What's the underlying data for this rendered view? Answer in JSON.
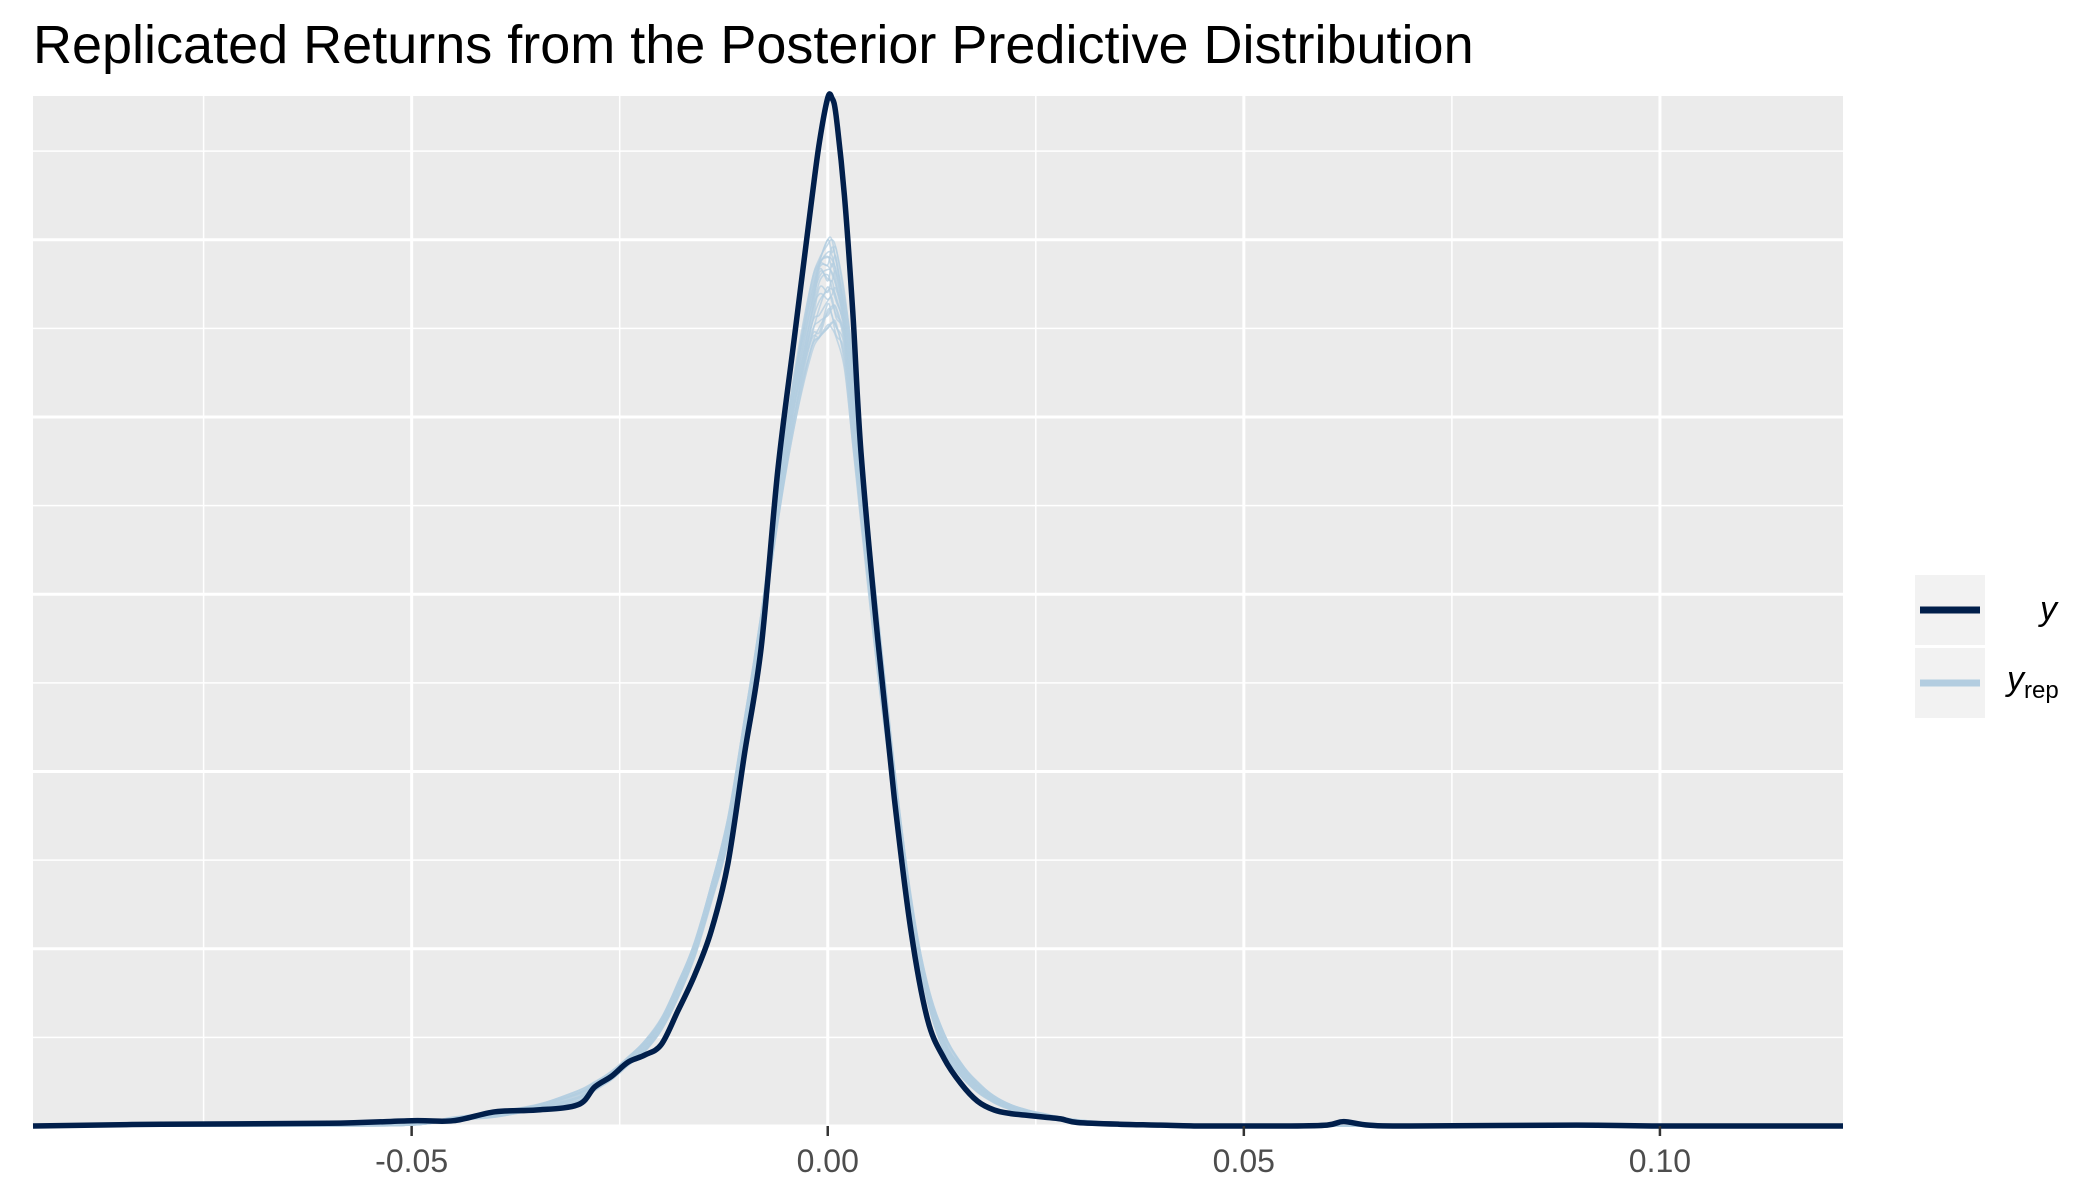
{
  "chart_data": {
    "type": "line",
    "title": "Replicated Returns from the Posterior Predictive Distribution",
    "xlabel": "",
    "ylabel": "",
    "xlim": [
      -0.0955,
      0.122
    ],
    "x_ticks": [
      -0.05,
      0.0,
      0.05,
      0.1
    ],
    "x_tick_labels": [
      "-0.05",
      "0.00",
      "0.05",
      "0.10"
    ],
    "y_scale_peak_density": 58,
    "grid": true,
    "legend_position": "right",
    "series": [
      {
        "name": "y",
        "role": "observed",
        "color": "#011f4b",
        "x": [
          -0.0955,
          -0.08,
          -0.06,
          -0.05,
          -0.045,
          -0.04,
          -0.035,
          -0.03,
          -0.028,
          -0.026,
          -0.024,
          -0.022,
          -0.02,
          -0.018,
          -0.016,
          -0.014,
          -0.012,
          -0.01,
          -0.008,
          -0.006,
          -0.004,
          -0.002,
          -0.001,
          0.0,
          0.0005,
          0.001,
          0.002,
          0.003,
          0.004,
          0.006,
          0.008,
          0.01,
          0.012,
          0.014,
          0.016,
          0.018,
          0.02,
          0.022,
          0.024,
          0.026,
          0.028,
          0.03,
          0.035,
          0.04,
          0.045,
          0.05,
          0.055,
          0.06,
          0.062,
          0.065,
          0.07,
          0.09,
          0.1,
          0.122
        ],
        "y": [
          0.0,
          0.1,
          0.15,
          0.3,
          0.3,
          0.8,
          0.9,
          1.2,
          2.2,
          2.8,
          3.6,
          4.0,
          4.6,
          6.5,
          8.5,
          11.0,
          14.8,
          21.0,
          27.0,
          37.0,
          44.5,
          52.0,
          55.5,
          58.0,
          58.0,
          57.0,
          52.5,
          46.0,
          38.0,
          27.5,
          18.5,
          11.0,
          6.0,
          3.8,
          2.4,
          1.4,
          0.9,
          0.7,
          0.6,
          0.5,
          0.4,
          0.2,
          0.1,
          0.05,
          0.0,
          0.0,
          0.0,
          0.05,
          0.25,
          0.05,
          0.0,
          0.05,
          0.0,
          0.0
        ]
      },
      {
        "name": "yrep",
        "role": "replicated",
        "color": "#b3cde0",
        "x": [
          -0.0955,
          -0.06,
          -0.05,
          -0.045,
          -0.04,
          -0.035,
          -0.03,
          -0.028,
          -0.026,
          -0.024,
          -0.022,
          -0.02,
          -0.018,
          -0.016,
          -0.014,
          -0.012,
          -0.01,
          -0.008,
          -0.006,
          -0.004,
          -0.002,
          -0.001,
          0.0,
          0.0005,
          0.001,
          0.002,
          0.003,
          0.004,
          0.006,
          0.008,
          0.01,
          0.012,
          0.014,
          0.016,
          0.018,
          0.02,
          0.022,
          0.024,
          0.026,
          0.028,
          0.03,
          0.035,
          0.04,
          0.045,
          0.05,
          0.06,
          0.122
        ],
        "y_low": [
          0.0,
          0.0,
          0.05,
          0.3,
          0.5,
          0.9,
          1.4,
          2.0,
          2.6,
          3.4,
          4.2,
          5.4,
          7.2,
          9.5,
          12.5,
          16.0,
          21.5,
          27.5,
          34.0,
          39.5,
          43.5,
          44.5,
          45.0,
          45.0,
          44.5,
          42.5,
          38.5,
          34.0,
          25.5,
          18.0,
          11.5,
          7.0,
          4.2,
          2.8,
          1.9,
          1.3,
          0.9,
          0.7,
          0.5,
          0.4,
          0.25,
          0.1,
          0.05,
          0.0,
          0.0,
          0.0,
          0.0
        ],
        "y_high": [
          0.0,
          0.05,
          0.1,
          0.5,
          0.8,
          1.2,
          2.0,
          2.5,
          3.1,
          3.9,
          4.8,
          6.1,
          8.1,
          10.4,
          13.6,
          17.4,
          23.0,
          29.0,
          36.0,
          42.5,
          47.5,
          49.5,
          50.0,
          50.0,
          49.5,
          47.5,
          43.5,
          38.0,
          29.0,
          20.5,
          13.0,
          8.0,
          5.2,
          3.6,
          2.5,
          1.7,
          1.2,
          0.9,
          0.7,
          0.5,
          0.35,
          0.15,
          0.08,
          0.03,
          0.0,
          0.0,
          0.0
        ]
      }
    ],
    "legend": [
      {
        "label": "y",
        "color": "#011f4b"
      },
      {
        "label": "y",
        "subscript": "rep",
        "color": "#b3cde0"
      }
    ],
    "colors": {
      "panel_background": "#ebebeb",
      "grid": "#ffffff",
      "axis_text": "#4d4d4d",
      "observed": "#011f4b",
      "replicated": "#b3cde0"
    }
  }
}
